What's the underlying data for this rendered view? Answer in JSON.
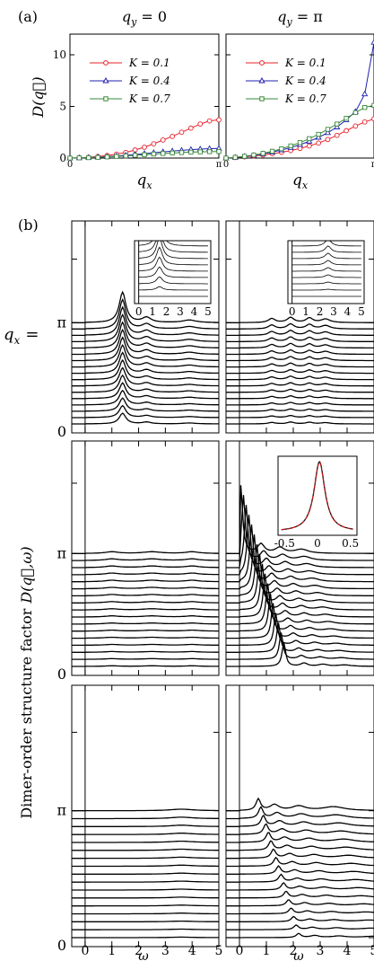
{
  "figure": {
    "panel_a_label": "(a)",
    "panel_b_label": "(b)",
    "ylabel_b": "Dimer-order structure factor",
    "ylabel_b_math": "D(q⃗,ω)",
    "qx_label": "q",
    "qx_sub": "x",
    "qx_eq": "=",
    "pi": "π",
    "zero": "0"
  },
  "chart_data": [
    {
      "type": "line",
      "panel": "a-left",
      "title": "q_y = 0",
      "title_parts": [
        "q",
        "y",
        " = 0"
      ],
      "xlabel": "q_x",
      "ylabel": "D(q⃗)",
      "xlim": [
        0,
        3.1416
      ],
      "ylim": [
        0,
        12
      ],
      "x_ticklabels": [
        "0",
        "π"
      ],
      "y_ticklabels": [
        "0",
        "5",
        "10"
      ],
      "legend_placement": "upper-left",
      "series": [
        {
          "name": "K = 0.1",
          "color": "#e8202a",
          "marker": "circle",
          "x": [
            0,
            0.196,
            0.393,
            0.589,
            0.785,
            0.982,
            1.178,
            1.374,
            1.571,
            1.767,
            1.963,
            2.16,
            2.356,
            2.553,
            2.749,
            2.945,
            3.142
          ],
          "y": [
            0,
            0.03,
            0.08,
            0.15,
            0.25,
            0.38,
            0.55,
            0.78,
            1.05,
            1.38,
            1.75,
            2.1,
            2.5,
            2.9,
            3.3,
            3.6,
            3.7
          ]
        },
        {
          "name": "K = 0.4",
          "color": "#2020b0",
          "marker": "triangle",
          "x": [
            0,
            0.196,
            0.393,
            0.589,
            0.785,
            0.982,
            1.178,
            1.374,
            1.571,
            1.767,
            1.963,
            2.16,
            2.356,
            2.553,
            2.749,
            2.945,
            3.142
          ],
          "y": [
            0,
            0.02,
            0.05,
            0.09,
            0.14,
            0.2,
            0.27,
            0.35,
            0.43,
            0.52,
            0.6,
            0.68,
            0.75,
            0.82,
            0.87,
            0.91,
            0.93
          ]
        },
        {
          "name": "K = 0.7",
          "color": "#3a8a3a",
          "marker": "square",
          "x": [
            0,
            0.196,
            0.393,
            0.589,
            0.785,
            0.982,
            1.178,
            1.374,
            1.571,
            1.767,
            1.963,
            2.16,
            2.356,
            2.553,
            2.749,
            2.945,
            3.142
          ],
          "y": [
            0,
            0.02,
            0.04,
            0.07,
            0.11,
            0.16,
            0.21,
            0.27,
            0.33,
            0.39,
            0.44,
            0.49,
            0.53,
            0.57,
            0.6,
            0.62,
            0.63
          ]
        }
      ]
    },
    {
      "type": "line",
      "panel": "a-right",
      "title": "q_y = π",
      "title_parts": [
        "q",
        "y",
        " = π"
      ],
      "xlabel": "q_x",
      "xlim": [
        0,
        3.1416
      ],
      "ylim": [
        0,
        12
      ],
      "x_ticklabels": [
        "0",
        "π"
      ],
      "legend_placement": "upper-left",
      "series": [
        {
          "name": "K = 0.1",
          "color": "#e8202a",
          "marker": "circle",
          "x": [
            0,
            0.196,
            0.393,
            0.589,
            0.785,
            0.982,
            1.178,
            1.374,
            1.571,
            1.767,
            1.963,
            2.16,
            2.356,
            2.553,
            2.749,
            2.945,
            3.142
          ],
          "y": [
            0,
            0.05,
            0.12,
            0.2,
            0.3,
            0.42,
            0.56,
            0.73,
            0.93,
            1.17,
            1.45,
            1.8,
            2.2,
            2.65,
            3.1,
            3.5,
            3.8
          ]
        },
        {
          "name": "K = 0.4",
          "color": "#2020b0",
          "marker": "triangle",
          "x": [
            0,
            0.196,
            0.393,
            0.589,
            0.785,
            0.982,
            1.178,
            1.374,
            1.571,
            1.767,
            1.963,
            2.16,
            2.356,
            2.553,
            2.749,
            2.945,
            3.142
          ],
          "y": [
            0,
            0.06,
            0.15,
            0.26,
            0.4,
            0.57,
            0.78,
            1.02,
            1.3,
            1.62,
            2.0,
            2.45,
            3.0,
            3.7,
            4.5,
            6.2,
            11.2
          ]
        },
        {
          "name": "K = 0.7",
          "color": "#3a8a3a",
          "marker": "square",
          "x": [
            0,
            0.196,
            0.393,
            0.589,
            0.785,
            0.982,
            1.178,
            1.374,
            1.571,
            1.767,
            1.963,
            2.16,
            2.356,
            2.553,
            2.749,
            2.945,
            3.142
          ],
          "y": [
            0,
            0.07,
            0.17,
            0.3,
            0.46,
            0.66,
            0.9,
            1.18,
            1.5,
            1.88,
            2.3,
            2.78,
            3.3,
            3.85,
            4.4,
            4.9,
            5.1
          ]
        }
      ]
    },
    {
      "type": "line",
      "panel": "b-grid",
      "xlabel": "ω",
      "xlim": [
        -0.5,
        5
      ],
      "x_ticklabels": [
        "0",
        "1",
        "2",
        "3",
        "4",
        "5"
      ],
      "y_ticklabels": [
        "0",
        "π"
      ],
      "y_axis_label": "q_x",
      "n_curves": 17,
      "description_rows": [
        "K = 0.1",
        "K = 0.4",
        "K = 0.7"
      ],
      "panels": [
        {
          "row": 0,
          "col": 0,
          "peaks": [
            [
              1.4,
              3.0,
              0.15
            ],
            [
              2.3,
              0.5,
              0.2
            ],
            [
              3.9,
              0.25,
              0.3
            ]
          ]
        },
        {
          "row": 0,
          "col": 1,
          "peaks": [
            [
              1.2,
              0.4,
              0.15
            ],
            [
              1.9,
              0.5,
              0.15
            ],
            [
              2.6,
              0.45,
              0.15
            ],
            [
              3.2,
              0.35,
              0.2
            ]
          ]
        },
        {
          "row": 1,
          "col": 0,
          "peaks": [
            [
              1.0,
              0.15,
              0.3
            ],
            [
              2.5,
              0.15,
              0.4
            ],
            [
              4.0,
              0.15,
              0.3
            ]
          ]
        },
        {
          "row": 1,
          "col": 1,
          "peaks": [
            [
              0.05,
              6.0,
              0.08
            ],
            [
              0.8,
              0.8,
              0.15
            ],
            [
              1.5,
              0.5,
              0.2
            ],
            [
              2.3,
              0.35,
              0.3
            ]
          ]
        },
        {
          "row": 2,
          "col": 0,
          "peaks": [
            [
              3.6,
              0.12,
              0.5
            ]
          ]
        },
        {
          "row": 2,
          "col": 1,
          "peaks": [
            [
              0.7,
              0.9,
              0.1
            ],
            [
              1.3,
              0.45,
              0.2
            ],
            [
              2.2,
              0.35,
              0.3
            ],
            [
              3.5,
              0.3,
              0.5
            ]
          ]
        }
      ],
      "insets": [
        {
          "panel": "row0-col0",
          "x_ticklabels": [
            "0",
            "1",
            "2",
            "3",
            "4",
            "5"
          ],
          "peak_x": 1.5
        },
        {
          "panel": "row0-col1",
          "x_ticklabels": [
            "0",
            "1",
            "2",
            "3",
            "4",
            "5"
          ],
          "peak_x": 2.6
        },
        {
          "panel": "row1-col1",
          "x_ticklabels": [
            "-0.5",
            "0",
            "0.5"
          ],
          "fit_color": "#cc1111",
          "line_color": "#000000"
        }
      ]
    }
  ]
}
